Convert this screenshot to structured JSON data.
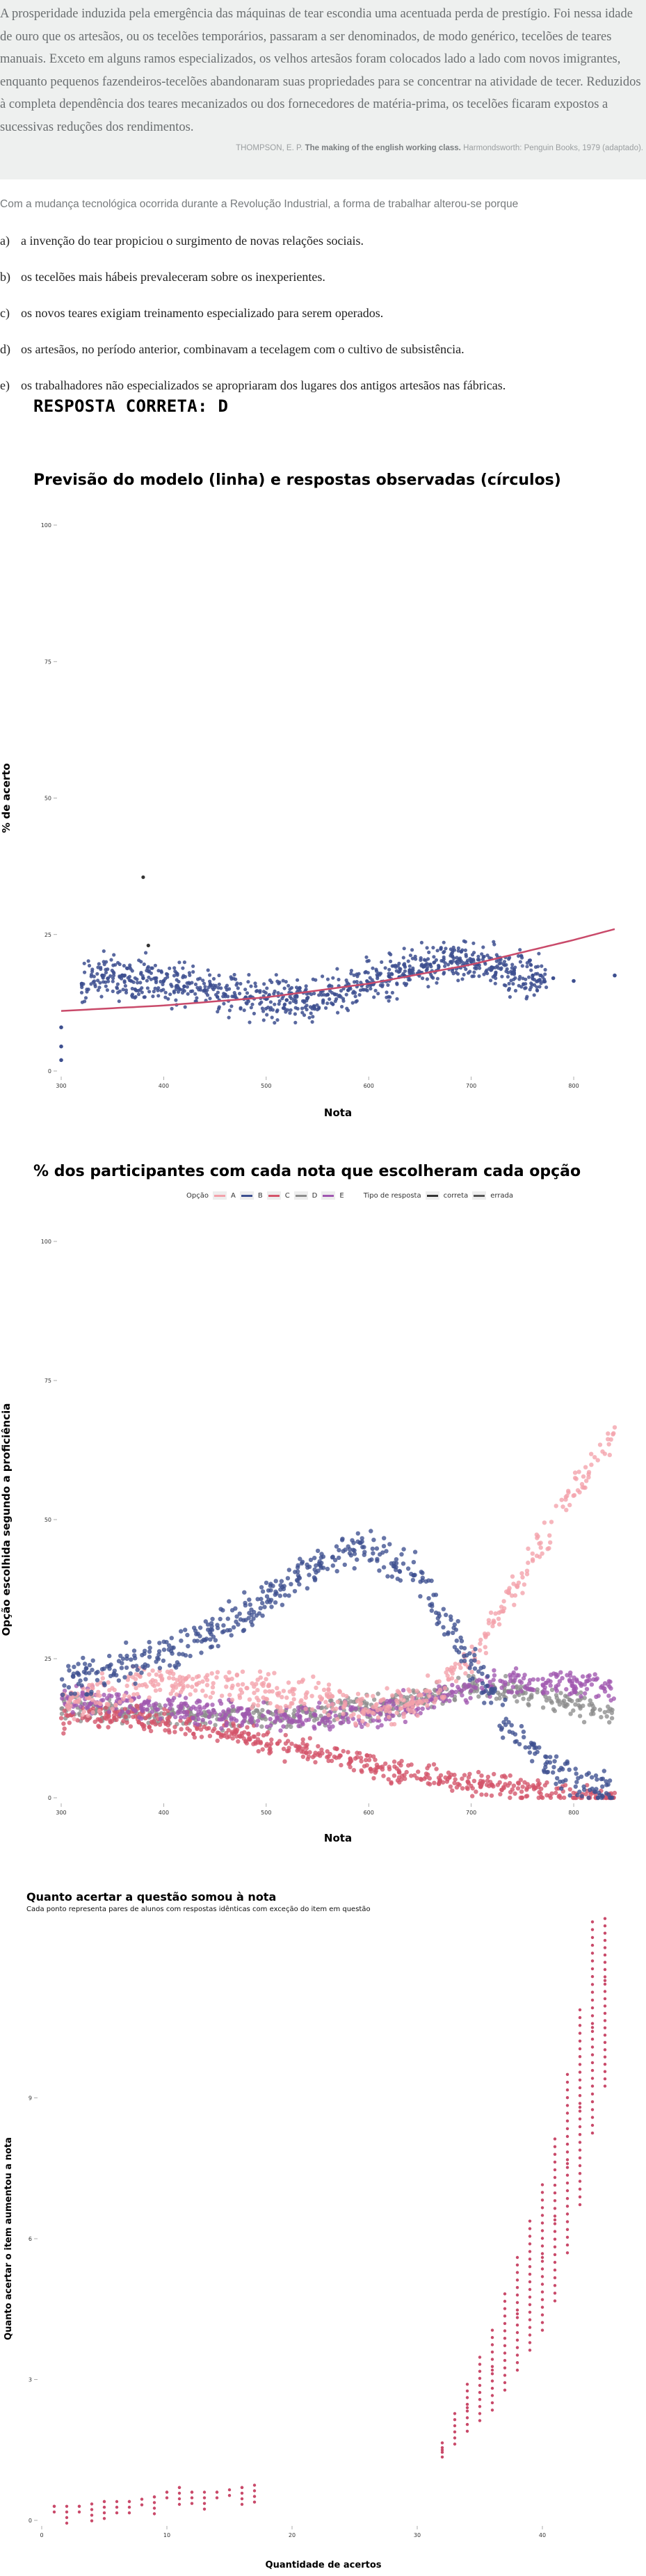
{
  "quote": {
    "text": "A prosperidade induzida pela emergência das máquinas de tear escondia uma acentuada perda de prestígio. Foi nessa idade de ouro que os artesãos, ou os tecelões temporários, passaram a ser denominados, de modo genérico, tecelões de teares manuais. Exceto em alguns ramos especializados, os velhos artesãos foram colocados lado a lado com novos imigrantes, enquanto pequenos fazendeiros-tecelões abandonaram suas propriedades para se concentrar na atividade de tecer. Reduzidos à completa dependência dos teares mecanizados ou dos fornecedores de matéria-prima, os tecelões ficaram expostos a sucessivas reduções dos rendimentos.",
    "citation_author": "THOMPSON, E. P.",
    "citation_title": "The making of the english working class.",
    "citation_rest": "Harmondsworth: Penguin Books, 1979 (adaptado)."
  },
  "question": {
    "stem": "Com a mudança tecnológica ocorrida durante a Revolução Industrial, a forma de trabalhar alterou-se porque",
    "options": [
      {
        "letter": "a)",
        "text": "a invenção do tear propiciou o surgimento de novas relações sociais."
      },
      {
        "letter": "b)",
        "text": "os tecelões mais hábeis prevaleceram sobre os inexperientes."
      },
      {
        "letter": "c)",
        "text": "os novos teares exigiam treinamento especializado para serem operados."
      },
      {
        "letter": "d)",
        "text": "os artesãos, no período anterior, combinavam a tecelagem com o cultivo de subsistência."
      },
      {
        "letter": "e)",
        "text": "os trabalhadores não especializados se apropriaram dos lugares dos antigos artesãos nas fábricas."
      }
    ],
    "answer_label": "RESPOSTA CORRETA: D"
  },
  "colors": {
    "A": "#f3a1aa",
    "B": "#3d4f8f",
    "C": "#d4546a",
    "D": "#8d8d8d",
    "E": "#a057b0",
    "model": "#c94a6a"
  },
  "chart_data": [
    {
      "type": "scatter",
      "title": "Previsão do modelo (linha) e respostas observadas (círculos)",
      "xlabel": "Nota",
      "ylabel": "% de acerto",
      "xlim": [
        300,
        840
      ],
      "ylim": [
        0,
        100
      ],
      "xticks": [
        "300",
        "400",
        "500",
        "600",
        "700",
        "800"
      ],
      "yticks": [
        "0",
        "25",
        "50",
        "75",
        "100"
      ],
      "grid": false,
      "series": [
        {
          "x": [
            300,
            300,
            300,
            320,
            340,
            360,
            380,
            400,
            420,
            440,
            460,
            480,
            500,
            520,
            540,
            560,
            580,
            600,
            620,
            640,
            660,
            680,
            700,
            720,
            740,
            760,
            780,
            800,
            840
          ],
          "y": [
            2,
            4.5,
            8,
            16,
            17.5,
            17.5,
            17,
            16.5,
            15.5,
            14.8,
            14,
            13.5,
            13.2,
            13,
            13.3,
            14,
            14.8,
            16,
            17.3,
            18.5,
            19.5,
            20,
            20,
            19,
            18,
            17.5,
            17,
            16.5,
            17.5
          ]
        },
        {
          "x": [
            380,
            385
          ],
          "y": [
            35.5,
            23
          ]
        }
      ],
      "model_line": {
        "x": [
          300,
          400,
          500,
          600,
          700,
          800,
          840
        ],
        "y": [
          11,
          12,
          13.5,
          16,
          19.5,
          24,
          26
        ]
      }
    },
    {
      "type": "scatter",
      "title": "% dos participantes com cada nota que escolheram cada opção",
      "xlabel": "Nota",
      "ylabel": "Opção escolhida segundo a proficiência",
      "xlim": [
        300,
        840
      ],
      "ylim": [
        0,
        100
      ],
      "xticks": [
        "300",
        "400",
        "500",
        "600",
        "700",
        "800"
      ],
      "yticks": [
        "0",
        "25",
        "50",
        "75",
        "100"
      ],
      "grid": false,
      "legend": {
        "position": "top",
        "opcao_label": "Opção",
        "options": [
          "A",
          "B",
          "C",
          "D",
          "E"
        ],
        "tipo_label": "Tipo de resposta",
        "tipos": [
          "correta",
          "errada"
        ]
      },
      "series": [
        {
          "name": "A",
          "x": [
            300,
            350,
            400,
            450,
            500,
            550,
            600,
            650,
            700,
            750,
            800,
            840
          ],
          "y": [
            17,
            19,
            21,
            21,
            19.5,
            18,
            16,
            17,
            25,
            40,
            55,
            66
          ]
        },
        {
          "name": "B",
          "x": [
            300,
            350,
            400,
            450,
            500,
            550,
            600,
            650,
            700,
            750,
            800,
            840
          ],
          "y": [
            20,
            23,
            26,
            30,
            36,
            42,
            45,
            40,
            24,
            10,
            3,
            1
          ]
        },
        {
          "name": "C",
          "x": [
            300,
            350,
            400,
            450,
            500,
            550,
            600,
            650,
            700,
            750,
            800,
            840
          ],
          "y": [
            14,
            15,
            14,
            12,
            10,
            8,
            6,
            4,
            2.5,
            1.5,
            0.5,
            0.2
          ]
        },
        {
          "name": "D",
          "x": [
            300,
            350,
            400,
            450,
            500,
            550,
            600,
            650,
            700,
            750,
            800,
            840
          ],
          "y": [
            16,
            15.5,
            15,
            14.5,
            14.5,
            15,
            16,
            18,
            20,
            19,
            17,
            15
          ]
        },
        {
          "name": "E",
          "x": [
            300,
            350,
            400,
            450,
            500,
            550,
            600,
            650,
            700,
            750,
            800,
            840
          ],
          "y": [
            18,
            17,
            16,
            15,
            14.5,
            14.5,
            15,
            17,
            20,
            21,
            20.5,
            20
          ]
        }
      ]
    },
    {
      "type": "scatter",
      "title": "Quanto acertar a questão somou à nota",
      "subtitle": "Cada ponto representa pares de alunos com respostas idênticas com exceção do item em questão",
      "xlabel": "Quantidade de acertos",
      "ylabel": "Quanto acertar o item aumentou a nota",
      "xlim": [
        0,
        45
      ],
      "ylim": [
        0,
        12
      ],
      "xticks": [
        "0",
        "10",
        "20",
        "30",
        "40"
      ],
      "yticks": [
        "0",
        "3",
        "6",
        "9"
      ],
      "grid": false,
      "series": [
        {
          "x": [
            1,
            3,
            5,
            7,
            9,
            10,
            11,
            12,
            14,
            16,
            32,
            34,
            36,
            38,
            40,
            41,
            42,
            43,
            44,
            45
          ],
          "y": [
            0.3,
            0.3,
            0.4,
            0.4,
            0.5,
            0.6,
            0.7,
            0.6,
            0.6,
            0.7,
            1.5,
            2.4,
            3.2,
            4.4,
            5.6,
            6.4,
            7.6,
            8.8,
            10.5,
            11.5
          ]
        }
      ]
    }
  ]
}
